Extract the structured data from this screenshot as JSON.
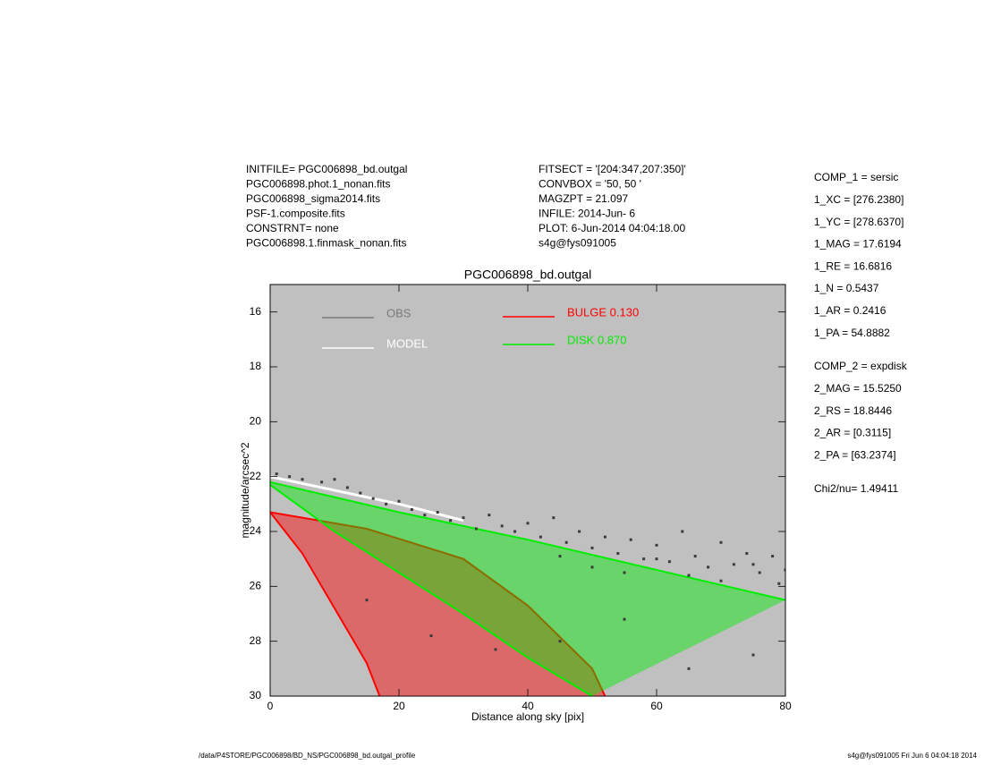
{
  "header": {
    "left": [
      "INITFILE= PGC006898_bd.outgal",
      "PGC006898.phot.1_nonan.fits",
      "PGC006898_sigma2014.fits",
      "PSF-1.composite.fits",
      "CONSTRNT= none",
      "PGC006898.1.finmask_nonan.fits"
    ],
    "middle": [
      "FITSECT = '[204:347,207:350]'",
      "CONVBOX = '50, 50  '",
      "MAGZPT =           21.097",
      "INFILE: 2014-Jun- 6",
      "PLOT:  6-Jun-2014 04:04:18.00",
      "s4g@fys091005"
    ]
  },
  "params": {
    "comp1": [
      "COMP_1  = sersic",
      "1_XC    = [276.2380]",
      "1_YC    = [278.6370]",
      "1_MAG   = 17.6194",
      "1_RE    = 16.6816",
      "1_N     = 0.5437",
      "1_AR    = 0.2416",
      "1_PA    = 54.8882"
    ],
    "comp2": [
      "COMP_2  = expdisk",
      "2_MAG   = 15.5250",
      "2_RS    = 18.8446",
      "2_AR    = [0.3115]",
      "2_PA    = [63.2374]"
    ],
    "chi": "Chi2/nu=     1.49411"
  },
  "footer": {
    "left": "/data/P4STORE/PGC006898/BD_NS/PGC006898_bd.outgal_profile",
    "right": "s4g@fys091005  Fri Jun  6 04:04:18 2014"
  },
  "chart_data": {
    "type": "scatter",
    "title": "PGC006898_bd.outgal",
    "x_label": "Distance along sky [pix]",
    "y_label": "magnitude/arcsec^2",
    "xlim": [
      0,
      80
    ],
    "xticks": [
      0,
      20,
      40,
      60,
      80
    ],
    "ylim": [
      15,
      30
    ],
    "y_reversed": true,
    "yticks": [
      16,
      18,
      20,
      22,
      24,
      26,
      28,
      30
    ],
    "background": "#c0c0c0",
    "series": [
      {
        "name": "OBS",
        "type": "scatter",
        "color": "#3a3a3a",
        "legend_color": "#7a7a7a",
        "x": [
          1,
          3,
          5,
          8,
          10,
          12,
          14,
          16,
          18,
          20,
          22,
          24,
          26,
          28,
          30,
          32,
          34,
          36,
          38,
          40,
          42,
          44,
          46,
          48,
          50,
          52,
          54,
          56,
          58,
          60,
          62,
          64,
          66,
          68,
          70,
          72,
          74,
          76,
          78,
          80,
          45,
          50,
          55,
          60,
          65,
          70,
          75,
          79,
          15,
          25,
          35,
          45,
          55,
          65,
          75
        ],
        "values": [
          21.9,
          22.0,
          22.1,
          22.2,
          22.1,
          22.4,
          22.6,
          22.8,
          23.0,
          22.9,
          23.2,
          23.4,
          23.3,
          23.6,
          23.5,
          23.9,
          23.4,
          23.8,
          24.0,
          23.7,
          24.2,
          23.5,
          24.4,
          24.0,
          24.6,
          24.2,
          24.8,
          24.3,
          25.0,
          24.5,
          25.1,
          24.0,
          24.9,
          25.3,
          24.4,
          25.2,
          24.8,
          25.5,
          24.9,
          25.4,
          24.9,
          25.3,
          25.5,
          25.0,
          25.6,
          25.8,
          25.2,
          25.9,
          26.5,
          27.8,
          28.3,
          28.0,
          27.2,
          29.0,
          28.5
        ]
      },
      {
        "name": "MODEL",
        "type": "line",
        "color": "#ffffff",
        "x": [
          0,
          10,
          20,
          30
        ],
        "values": [
          22.0,
          22.5,
          23.0,
          23.6
        ]
      },
      {
        "name": "BULGE  0.130",
        "type": "band",
        "color": "#ff0000",
        "x": [
          0,
          15,
          30,
          40,
          50,
          52
        ],
        "values": [
          23.3,
          23.9,
          25.0,
          26.7,
          29.0,
          30.0
        ],
        "x_low": [
          0,
          5,
          10,
          15,
          17
        ],
        "values_low": [
          23.3,
          24.8,
          26.8,
          28.8,
          30.0
        ]
      },
      {
        "name": "DISK  0.870",
        "type": "band",
        "color": "#00ee00",
        "x": [
          0,
          20,
          40,
          60,
          80
        ],
        "values": [
          22.2,
          23.3,
          24.3,
          25.4,
          26.5
        ],
        "x_low": [
          0,
          10,
          20,
          30,
          40,
          50
        ],
        "values_low": [
          22.3,
          24.0,
          25.5,
          27.0,
          28.6,
          30.0
        ]
      }
    ]
  }
}
